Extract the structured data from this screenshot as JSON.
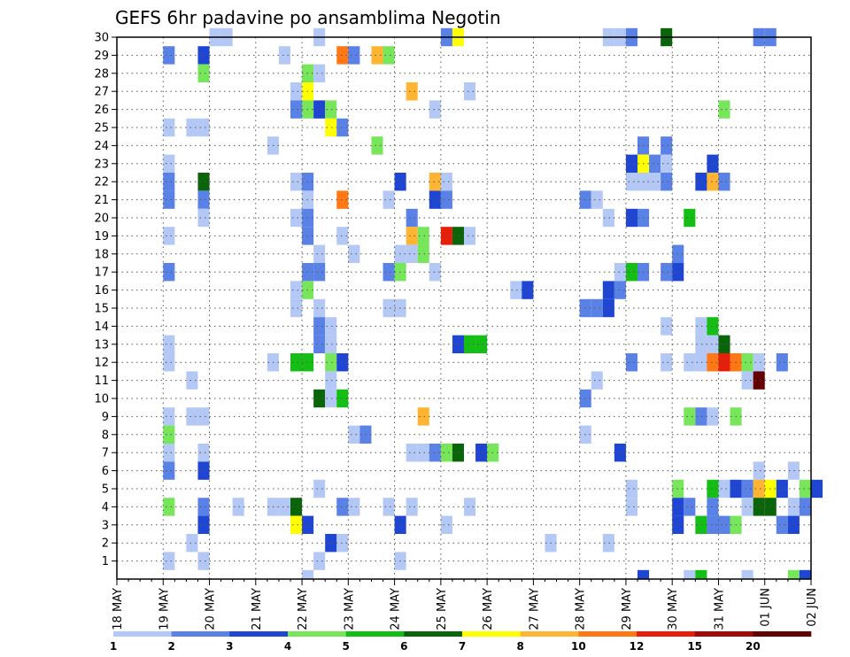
{
  "chart_data": {
    "type": "heatmap",
    "title": "GEFS 6hr padavine po ansamblima Negotin",
    "xlabel": "",
    "ylabel": "",
    "x_tick_labels": [
      "18 MAY",
      "19 MAY",
      "20 MAY",
      "21 MAY",
      "22 MAY",
      "23 MAY",
      "24 MAY",
      "25 MAY",
      "26 MAY",
      "27 MAY",
      "28 MAY",
      "29 MAY",
      "30 MAY",
      "31 MAY",
      "01 JUN",
      "02 JUN"
    ],
    "y_tick_labels": [
      "1",
      "2",
      "3",
      "4",
      "5",
      "6",
      "7",
      "8",
      "9",
      "10",
      "11",
      "12",
      "13",
      "14",
      "15",
      "16",
      "17",
      "18",
      "19",
      "20",
      "21",
      "22",
      "23",
      "24",
      "25",
      "26",
      "27",
      "28",
      "29",
      "30"
    ],
    "y_range": [
      0,
      30
    ],
    "x_steps_per_day": 4,
    "grid": true,
    "colorbar": {
      "labels": [
        "1",
        "2",
        "3",
        "4",
        "5",
        "6",
        "7",
        "8",
        "10",
        "12",
        "15",
        "20"
      ],
      "colors": [
        "#b4c8f5",
        "#5a82e6",
        "#1e46d2",
        "#78e65a",
        "#14be14",
        "#0a640a",
        "#ffff00",
        "#ffb432",
        "#ff7814",
        "#e61e0a",
        "#a00a0a",
        "#640000"
      ]
    },
    "cells_format": "[member, time_step, class] - class indexes colorbar.colors",
    "cells": [
      [
        30,
        8,
        1
      ],
      [
        30,
        9,
        1
      ],
      [
        30,
        17,
        1
      ],
      [
        30,
        28,
        2
      ],
      [
        30,
        29,
        7
      ],
      [
        30,
        42,
        1
      ],
      [
        30,
        43,
        1
      ],
      [
        30,
        44,
        2
      ],
      [
        30,
        47,
        6
      ],
      [
        30,
        55,
        2
      ],
      [
        30,
        56,
        2
      ],
      [
        29,
        4,
        2
      ],
      [
        29,
        7,
        3
      ],
      [
        29,
        14,
        1
      ],
      [
        29,
        19,
        9
      ],
      [
        29,
        20,
        2
      ],
      [
        29,
        22,
        8
      ],
      [
        29,
        23,
        4
      ],
      [
        28,
        7,
        4
      ],
      [
        28,
        16,
        4
      ],
      [
        28,
        17,
        1
      ],
      [
        27,
        15,
        1
      ],
      [
        27,
        16,
        7
      ],
      [
        27,
        25,
        8
      ],
      [
        27,
        30,
        1
      ],
      [
        26,
        15,
        2
      ],
      [
        26,
        16,
        4
      ],
      [
        26,
        17,
        3
      ],
      [
        26,
        18,
        4
      ],
      [
        26,
        27,
        1
      ],
      [
        26,
        52,
        4
      ],
      [
        25,
        4,
        1
      ],
      [
        25,
        6,
        1
      ],
      [
        25,
        7,
        1
      ],
      [
        25,
        18,
        7
      ],
      [
        25,
        19,
        2
      ],
      [
        24,
        13,
        1
      ],
      [
        24,
        22,
        4
      ],
      [
        24,
        45,
        2
      ],
      [
        24,
        47,
        2
      ],
      [
        23,
        4,
        1
      ],
      [
        23,
        44,
        3
      ],
      [
        23,
        45,
        7
      ],
      [
        23,
        46,
        2
      ],
      [
        23,
        47,
        1
      ],
      [
        23,
        51,
        3
      ],
      [
        22,
        4,
        2
      ],
      [
        22,
        7,
        6
      ],
      [
        22,
        15,
        1
      ],
      [
        22,
        16,
        2
      ],
      [
        22,
        24,
        3
      ],
      [
        22,
        27,
        8
      ],
      [
        22,
        28,
        1
      ],
      [
        22,
        44,
        1
      ],
      [
        22,
        45,
        1
      ],
      [
        22,
        46,
        1
      ],
      [
        22,
        47,
        2
      ],
      [
        22,
        50,
        3
      ],
      [
        22,
        51,
        8
      ],
      [
        22,
        52,
        2
      ],
      [
        21,
        4,
        2
      ],
      [
        21,
        7,
        2
      ],
      [
        21,
        16,
        1
      ],
      [
        21,
        19,
        9
      ],
      [
        21,
        23,
        1
      ],
      [
        21,
        27,
        3
      ],
      [
        21,
        28,
        2
      ],
      [
        21,
        40,
        2
      ],
      [
        21,
        41,
        1
      ],
      [
        20,
        7,
        1
      ],
      [
        20,
        15,
        1
      ],
      [
        20,
        16,
        2
      ],
      [
        20,
        25,
        2
      ],
      [
        20,
        42,
        1
      ],
      [
        20,
        44,
        3
      ],
      [
        20,
        45,
        2
      ],
      [
        20,
        49,
        5
      ],
      [
        19,
        4,
        1
      ],
      [
        19,
        16,
        2
      ],
      [
        19,
        19,
        1
      ],
      [
        19,
        25,
        8
      ],
      [
        19,
        26,
        4
      ],
      [
        19,
        28,
        10
      ],
      [
        19,
        29,
        6
      ],
      [
        19,
        30,
        1
      ],
      [
        18,
        17,
        1
      ],
      [
        18,
        20,
        1
      ],
      [
        18,
        24,
        1
      ],
      [
        18,
        25,
        1
      ],
      [
        18,
        26,
        4
      ],
      [
        18,
        48,
        2
      ],
      [
        17,
        4,
        2
      ],
      [
        17,
        16,
        2
      ],
      [
        17,
        17,
        2
      ],
      [
        17,
        23,
        2
      ],
      [
        17,
        24,
        4
      ],
      [
        17,
        27,
        1
      ],
      [
        17,
        43,
        1
      ],
      [
        17,
        44,
        5
      ],
      [
        17,
        45,
        2
      ],
      [
        17,
        47,
        2
      ],
      [
        17,
        48,
        3
      ],
      [
        16,
        15,
        1
      ],
      [
        16,
        16,
        4
      ],
      [
        16,
        34,
        1
      ],
      [
        16,
        35,
        3
      ],
      [
        16,
        42,
        3
      ],
      [
        16,
        43,
        2
      ],
      [
        15,
        15,
        1
      ],
      [
        15,
        17,
        1
      ],
      [
        15,
        23,
        1
      ],
      [
        15,
        24,
        1
      ],
      [
        15,
        40,
        2
      ],
      [
        15,
        41,
        2
      ],
      [
        15,
        42,
        3
      ],
      [
        14,
        17,
        2
      ],
      [
        14,
        18,
        1
      ],
      [
        14,
        47,
        1
      ],
      [
        14,
        50,
        1
      ],
      [
        14,
        51,
        5
      ],
      [
        13,
        4,
        1
      ],
      [
        13,
        17,
        2
      ],
      [
        13,
        18,
        1
      ],
      [
        13,
        29,
        3
      ],
      [
        13,
        30,
        5
      ],
      [
        13,
        31,
        5
      ],
      [
        13,
        50,
        1
      ],
      [
        13,
        51,
        1
      ],
      [
        13,
        52,
        6
      ],
      [
        12,
        4,
        1
      ],
      [
        12,
        13,
        1
      ],
      [
        12,
        15,
        5
      ],
      [
        12,
        16,
        5
      ],
      [
        12,
        18,
        4
      ],
      [
        12,
        19,
        3
      ],
      [
        12,
        44,
        2
      ],
      [
        12,
        47,
        1
      ],
      [
        12,
        49,
        1
      ],
      [
        12,
        50,
        1
      ],
      [
        12,
        51,
        9
      ],
      [
        12,
        52,
        10
      ],
      [
        12,
        53,
        9
      ],
      [
        12,
        54,
        4
      ],
      [
        12,
        55,
        1
      ],
      [
        12,
        57,
        2
      ],
      [
        11,
        6,
        1
      ],
      [
        11,
        18,
        1
      ],
      [
        11,
        41,
        1
      ],
      [
        11,
        54,
        1
      ],
      [
        11,
        55,
        12
      ],
      [
        10,
        17,
        6
      ],
      [
        10,
        18,
        1
      ],
      [
        10,
        19,
        5
      ],
      [
        10,
        40,
        2
      ],
      [
        9,
        4,
        1
      ],
      [
        9,
        6,
        1
      ],
      [
        9,
        7,
        1
      ],
      [
        9,
        26,
        8
      ],
      [
        9,
        49,
        4
      ],
      [
        9,
        50,
        2
      ],
      [
        9,
        51,
        1
      ],
      [
        9,
        53,
        4
      ],
      [
        8,
        4,
        4
      ],
      [
        8,
        20,
        1
      ],
      [
        8,
        21,
        2
      ],
      [
        8,
        40,
        1
      ],
      [
        7,
        4,
        1
      ],
      [
        7,
        7,
        1
      ],
      [
        7,
        25,
        1
      ],
      [
        7,
        26,
        1
      ],
      [
        7,
        27,
        2
      ],
      [
        7,
        28,
        4
      ],
      [
        7,
        29,
        6
      ],
      [
        7,
        31,
        3
      ],
      [
        7,
        32,
        4
      ],
      [
        7,
        43,
        3
      ],
      [
        6,
        4,
        2
      ],
      [
        6,
        7,
        3
      ],
      [
        6,
        55,
        1
      ],
      [
        6,
        58,
        1
      ],
      [
        5,
        17,
        1
      ],
      [
        5,
        44,
        1
      ],
      [
        5,
        48,
        4
      ],
      [
        5,
        51,
        5
      ],
      [
        5,
        52,
        1
      ],
      [
        5,
        53,
        3
      ],
      [
        5,
        54,
        2
      ],
      [
        5,
        55,
        8
      ],
      [
        5,
        56,
        7
      ],
      [
        5,
        57,
        3
      ],
      [
        5,
        59,
        4
      ],
      [
        5,
        60,
        3
      ],
      [
        4,
        4,
        4
      ],
      [
        4,
        7,
        2
      ],
      [
        4,
        10,
        1
      ],
      [
        4,
        13,
        1
      ],
      [
        4,
        14,
        1
      ],
      [
        4,
        15,
        6
      ],
      [
        4,
        19,
        2
      ],
      [
        4,
        20,
        1
      ],
      [
        4,
        23,
        1
      ],
      [
        4,
        25,
        1
      ],
      [
        4,
        30,
        1
      ],
      [
        4,
        44,
        1
      ],
      [
        4,
        48,
        3
      ],
      [
        4,
        49,
        2
      ],
      [
        4,
        51,
        2
      ],
      [
        4,
        54,
        1
      ],
      [
        4,
        55,
        6
      ],
      [
        4,
        56,
        6
      ],
      [
        4,
        58,
        1
      ],
      [
        4,
        59,
        2
      ],
      [
        3,
        7,
        3
      ],
      [
        3,
        15,
        7
      ],
      [
        3,
        16,
        3
      ],
      [
        3,
        24,
        3
      ],
      [
        3,
        28,
        1
      ],
      [
        3,
        48,
        3
      ],
      [
        3,
        50,
        5
      ],
      [
        3,
        51,
        2
      ],
      [
        3,
        52,
        2
      ],
      [
        3,
        53,
        4
      ],
      [
        3,
        57,
        2
      ],
      [
        3,
        58,
        3
      ],
      [
        2,
        6,
        1
      ],
      [
        2,
        18,
        3
      ],
      [
        2,
        19,
        1
      ],
      [
        2,
        37,
        1
      ],
      [
        2,
        42,
        1
      ],
      [
        1,
        4,
        1
      ],
      [
        1,
        7,
        1
      ],
      [
        1,
        17,
        1
      ],
      [
        1,
        24,
        1
      ],
      [
        0,
        16,
        1
      ],
      [
        0,
        45,
        3
      ],
      [
        0,
        49,
        1
      ],
      [
        0,
        50,
        5
      ],
      [
        0,
        54,
        1
      ],
      [
        0,
        58,
        4
      ],
      [
        0,
        59,
        3
      ]
    ]
  }
}
